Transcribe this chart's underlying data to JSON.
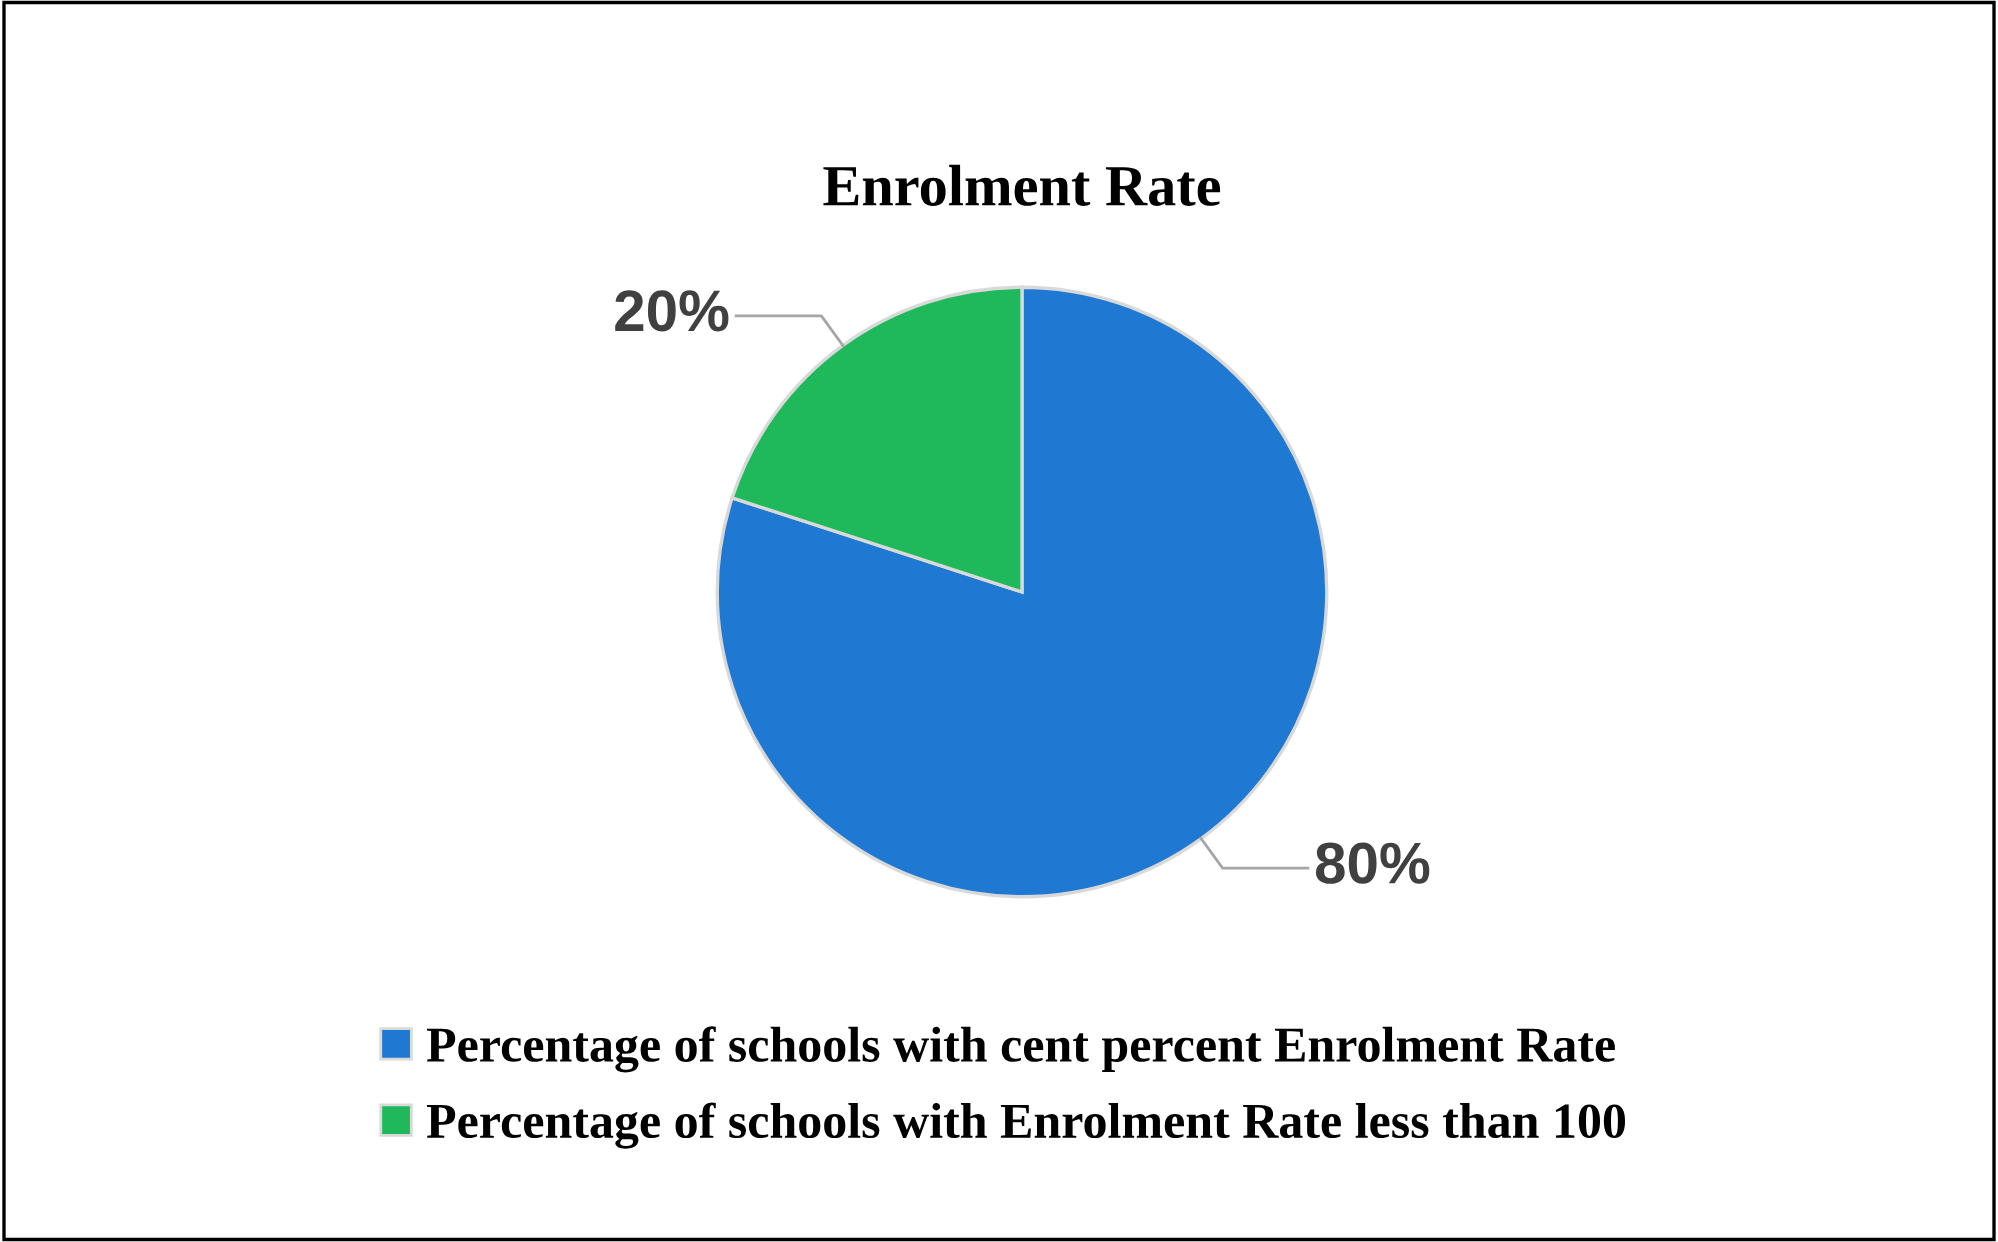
{
  "chart_data": {
    "type": "pie",
    "title": "Enrolment Rate",
    "categories": [
      "Percentage of schools with cent percent Enrolment Rate",
      "Percentage of schools with Enrolment Rate less than 100"
    ],
    "values": [
      80,
      20
    ],
    "colors": [
      "#1f78d1",
      "#1fb85a"
    ],
    "value_labels": [
      "80%",
      "20%"
    ],
    "legend": "bottom"
  }
}
